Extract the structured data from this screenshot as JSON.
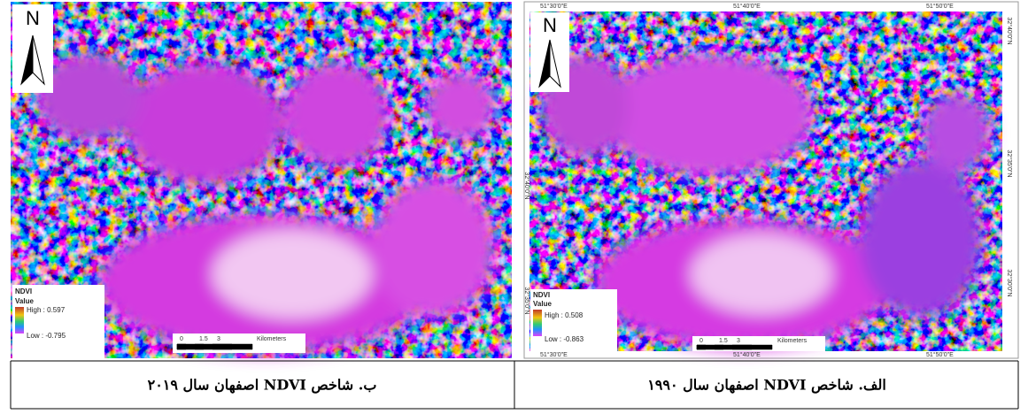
{
  "panels": [
    {
      "north": "N",
      "legend": {
        "title": "NDVI",
        "subtitle": "Value",
        "high": "High : 0.597",
        "low": "Low : -0.795"
      },
      "scale": [
        "0",
        "1.5",
        "3",
        "Kilometers"
      ],
      "caption": "ب. شاخص NDVI اصفهان سال ۲۰۱۹"
    },
    {
      "north": "N",
      "legend": {
        "title": "NDVI",
        "subtitle": "Value",
        "high": "High : 0.508",
        "low": "Low : -0.863"
      },
      "scale": [
        "0",
        "1.5",
        "3",
        "Kilometers"
      ],
      "coords_top": [
        "51°30'0\"E",
        "51°40'0\"E",
        "51°50'0\"E"
      ],
      "coords_bottom": [
        "51°30'0\"E",
        "51°40'0\"E",
        "51°50'0\"E"
      ],
      "coords_left": [
        "32°40'0\"N",
        "32°35'0\"N"
      ],
      "coords_right": [
        "32°40'0\"N",
        "32°35'0\"N",
        "32°30'0\"N"
      ],
      "caption": "الف. شاخص NDVI اصفهان سال ۱۹۹۰"
    }
  ]
}
